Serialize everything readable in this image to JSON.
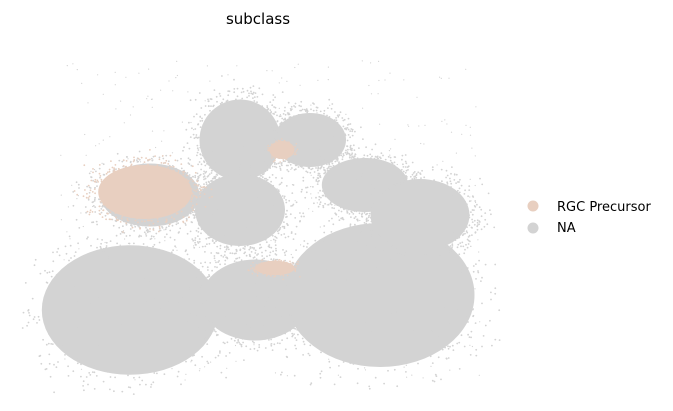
{
  "chart_data": {
    "type": "scatter",
    "title": "subclass",
    "xlabel": "",
    "ylabel": "",
    "grid": false,
    "axes_visible": false,
    "legend_placement": "right",
    "series": [
      {
        "name": "RGC Precursor",
        "color": "#e8cfc0"
      },
      {
        "name": "NA",
        "color": "#d3d3d3"
      }
    ]
  }
}
